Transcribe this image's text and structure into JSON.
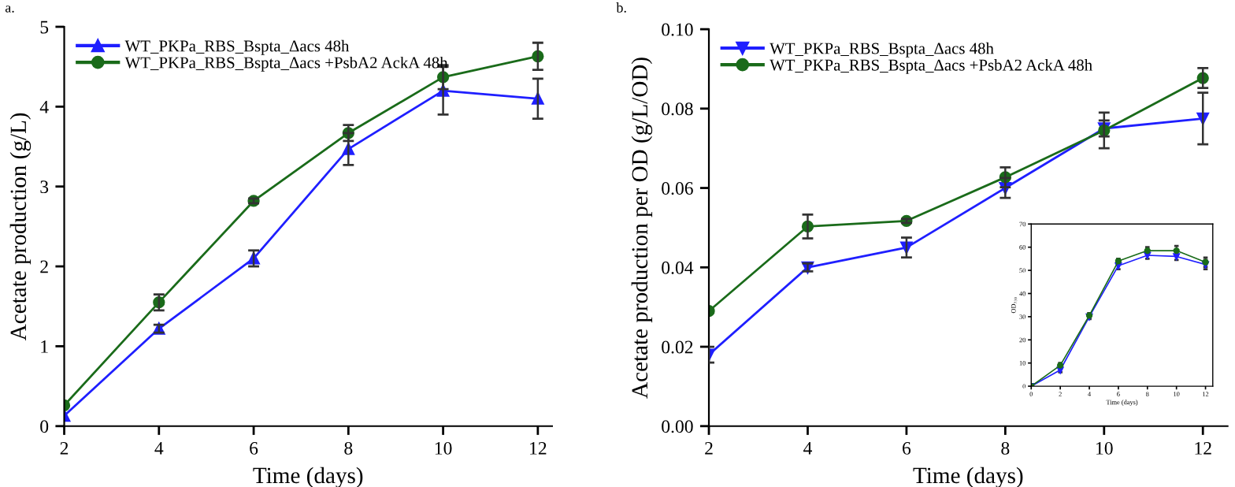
{
  "chart_data": [
    {
      "type": "line",
      "title": "a.",
      "xlabel": "Time (days)",
      "ylabel": "Acetate production (g/L)",
      "x": [
        2,
        4,
        6,
        8,
        10,
        12
      ],
      "xlim": [
        2,
        12.3
      ],
      "xticks": [
        2,
        4,
        6,
        8,
        10,
        12
      ],
      "ylim": [
        0,
        5
      ],
      "yticks": [
        0,
        1,
        2,
        3,
        4,
        5
      ],
      "grid": false,
      "legend": "top left",
      "series": [
        {
          "name": "WT_PKPa_RBS_Bspta_Δacs 48h",
          "color": "#1f1fff",
          "marker": "triangle",
          "values": [
            0.13,
            1.22,
            2.1,
            3.47,
            4.2,
            4.1
          ],
          "errors": [
            null,
            0.05,
            0.1,
            0.2,
            0.3,
            0.25
          ]
        },
        {
          "name": "WT_PKPa_RBS_Bspta_Δacs +PsbA2 AckA 48h",
          "color": "#1a6b1a",
          "marker": "circle",
          "values": [
            0.26,
            1.55,
            2.82,
            3.67,
            4.37,
            4.63
          ],
          "errors": [
            null,
            0.1,
            0.03,
            0.1,
            0.15,
            0.17
          ]
        }
      ]
    },
    {
      "type": "line",
      "title": "b.",
      "xlabel": "Time (days)",
      "ylabel": "Acetate production per OD (g/L/OD)",
      "x": [
        2,
        4,
        6,
        8,
        10,
        12
      ],
      "xlim": [
        2,
        12.5
      ],
      "xticks": [
        2,
        4,
        6,
        8,
        10,
        12
      ],
      "ylim": [
        0,
        0.1
      ],
      "yticks": [
        {
          "value": 0,
          "label": "0.00"
        },
        {
          "value": 0.02,
          "label": "0.02"
        },
        {
          "value": 0.04,
          "label": "0.04"
        },
        {
          "value": 0.06,
          "label": "0.06"
        },
        {
          "value": 0.08,
          "label": "0.08"
        },
        {
          "value": 0.1,
          "label": "0.10"
        }
      ],
      "grid": false,
      "legend": "top left",
      "series": [
        {
          "name": "WT_PKPa_RBS_Bspta_Δacs 48h",
          "color": "#1f1fff",
          "marker": "triangle_down",
          "values": [
            0.018,
            0.04,
            0.045,
            0.06,
            0.075,
            0.0775
          ],
          "errors": [
            0.002,
            0.001,
            0.0025,
            0.0025,
            0.002,
            0.0065
          ]
        },
        {
          "name": "WT_PKPa_RBS_Bspta_Δacs +PsbA2 AckA 48h",
          "color": "#1a6b1a",
          "marker": "circle",
          "values": [
            0.029,
            0.0503,
            0.0517,
            0.0627,
            0.0745,
            0.0877
          ],
          "errors": [
            null,
            0.003,
            0.0005,
            0.0025,
            0.0045,
            0.0025
          ]
        }
      ]
    },
    {
      "type": "line",
      "xlabel": "Time (days)",
      "ylabel": "OD₇₃₀",
      "x": [
        0,
        2,
        4,
        6,
        8,
        10,
        12
      ],
      "xlim": [
        0,
        12.5
      ],
      "xticks": [
        0,
        2,
        4,
        6,
        8,
        10,
        12
      ],
      "ylim": [
        0,
        70
      ],
      "yticks": [
        0,
        10,
        20,
        30,
        40,
        50,
        60,
        70
      ],
      "grid": false,
      "series": [
        {
          "color": "#1f1fff",
          "marker": "triangle_down",
          "values": [
            0,
            7,
            30,
            52,
            56.5,
            56,
            52.5
          ],
          "errors": [
            null,
            1,
            1,
            1.5,
            1.5,
            1.5,
            2
          ]
        },
        {
          "color": "#1a6b1a",
          "marker": "circle",
          "values": [
            0,
            9,
            30.5,
            54,
            58.5,
            58.5,
            53.5
          ],
          "errors": [
            null,
            1,
            1,
            1,
            1.5,
            2,
            2
          ]
        }
      ]
    }
  ]
}
